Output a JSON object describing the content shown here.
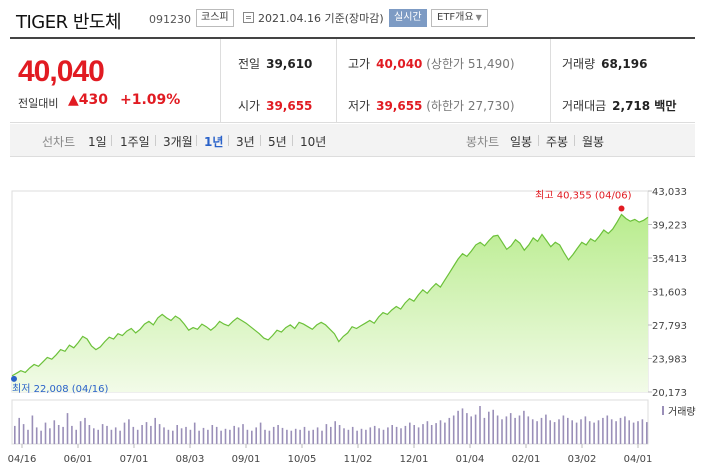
{
  "header": {
    "name": "TIGER 반도체",
    "code": "091230",
    "market": "코스피",
    "date": "2021.04.16 기준(장마감)",
    "realtime": "실시간",
    "etf_info": "ETF개요"
  },
  "quote": {
    "price": "40,040",
    "change_label": "전일대비",
    "change_arrow": "▲",
    "change_value": "430",
    "change_pct": "+1.09%",
    "prev_label": "전일",
    "prev_value": "39,610",
    "high_label": "고가",
    "high_value": "40,040",
    "high_limit": "(상한가 51,490)",
    "volume_label": "거래량",
    "volume_value": "68,196",
    "open_label": "시가",
    "open_value": "39,655",
    "low_label": "저가",
    "low_value": "39,655",
    "low_limit": "(하한가 27,730)",
    "amount_label": "거래대금",
    "amount_value": "2,718 백만"
  },
  "toolbar": {
    "line_label": "선차트",
    "periods": [
      "1일",
      "1주일",
      "3개월",
      "1년",
      "3년",
      "5년",
      "10년"
    ],
    "active_period": "1년",
    "candle_label": "봉차트",
    "candles": [
      "일봉",
      "주봉",
      "월봉"
    ]
  },
  "colors": {
    "up": "#e11b22",
    "accent": "#2a62c9",
    "line": "#6cc13a",
    "volume": "#9a8fb8"
  },
  "chart_data": {
    "type": "area",
    "yticks": [
      "43,033",
      "39,223",
      "35,413",
      "31,603",
      "27,793",
      "23,983",
      "20,173"
    ],
    "ylim": [
      20173,
      43033
    ],
    "xticks": [
      "04/16",
      "06/01",
      "07/01",
      "08/03",
      "09/01",
      "10/05",
      "11/02",
      "12/01",
      "01/04",
      "02/01",
      "03/02",
      "04/01"
    ],
    "high_label": "최고 40,355 (04/06)",
    "low_label": "최저 22,008 (04/16)",
    "volume_label": "거래량",
    "values": [
      22008,
      22300,
      22600,
      22400,
      22900,
      23300,
      23100,
      23600,
      24100,
      23900,
      24400,
      25000,
      24800,
      25500,
      25200,
      25800,
      26500,
      26200,
      25400,
      25000,
      25300,
      25900,
      26400,
      26200,
      26800,
      26600,
      27100,
      27400,
      26900,
      27300,
      27900,
      28200,
      27800,
      28600,
      29000,
      28600,
      28300,
      28800,
      28500,
      27900,
      27200,
      27500,
      27300,
      27900,
      27600,
      27200,
      27600,
      28200,
      27900,
      27700,
      28200,
      28600,
      28300,
      28000,
      27600,
      27200,
      26800,
      26300,
      26100,
      26600,
      27200,
      27000,
      27500,
      27800,
      27400,
      28100,
      27900,
      27600,
      27300,
      27800,
      28100,
      27800,
      27300,
      26800,
      25900,
      26500,
      26900,
      27600,
      27400,
      27700,
      28000,
      28300,
      28000,
      28700,
      29200,
      29000,
      29500,
      29900,
      29600,
      30300,
      30800,
      30500,
      31200,
      31800,
      31400,
      32000,
      32500,
      32100,
      32900,
      33700,
      34500,
      35300,
      35900,
      35600,
      36200,
      36900,
      37200,
      36800,
      37400,
      37900,
      38000,
      37200,
      36400,
      36800,
      37500,
      37100,
      36300,
      36900,
      37700,
      37300,
      38100,
      37400,
      36700,
      37200,
      36900,
      36000,
      35200,
      35800,
      36500,
      37200,
      36900,
      37600,
      37300,
      37900,
      38600,
      38200,
      38700,
      39500,
      40355,
      39900,
      39600,
      39800,
      39500,
      39700,
      40040
    ],
    "volumes": [
      38,
      55,
      42,
      30,
      60,
      35,
      28,
      45,
      33,
      50,
      40,
      36,
      65,
      38,
      30,
      48,
      55,
      40,
      33,
      30,
      42,
      38,
      30,
      35,
      28,
      45,
      52,
      36,
      30,
      40,
      46,
      38,
      55,
      42,
      35,
      30,
      28,
      40,
      33,
      36,
      30,
      45,
      28,
      34,
      30,
      40,
      36,
      28,
      32,
      30,
      38,
      35,
      42,
      30,
      28,
      35,
      45,
      30,
      28,
      36,
      40,
      34,
      30,
      28,
      32,
      30,
      36,
      28,
      30,
      35,
      28,
      42,
      36,
      48,
      40,
      33,
      30,
      36,
      28,
      32,
      30,
      35,
      38,
      33,
      30,
      35,
      40,
      36,
      33,
      38,
      45,
      40,
      35,
      42,
      48,
      40,
      44,
      50,
      45,
      55,
      60,
      70,
      75,
      65,
      58,
      62,
      80,
      55,
      68,
      72,
      60,
      52,
      58,
      65,
      55,
      60,
      70,
      58,
      52,
      48,
      55,
      62,
      50,
      46,
      52,
      60,
      55,
      50,
      45,
      52,
      58,
      48,
      45,
      50,
      55,
      60,
      52,
      48,
      55,
      58,
      50,
      45,
      48,
      52,
      46
    ]
  }
}
